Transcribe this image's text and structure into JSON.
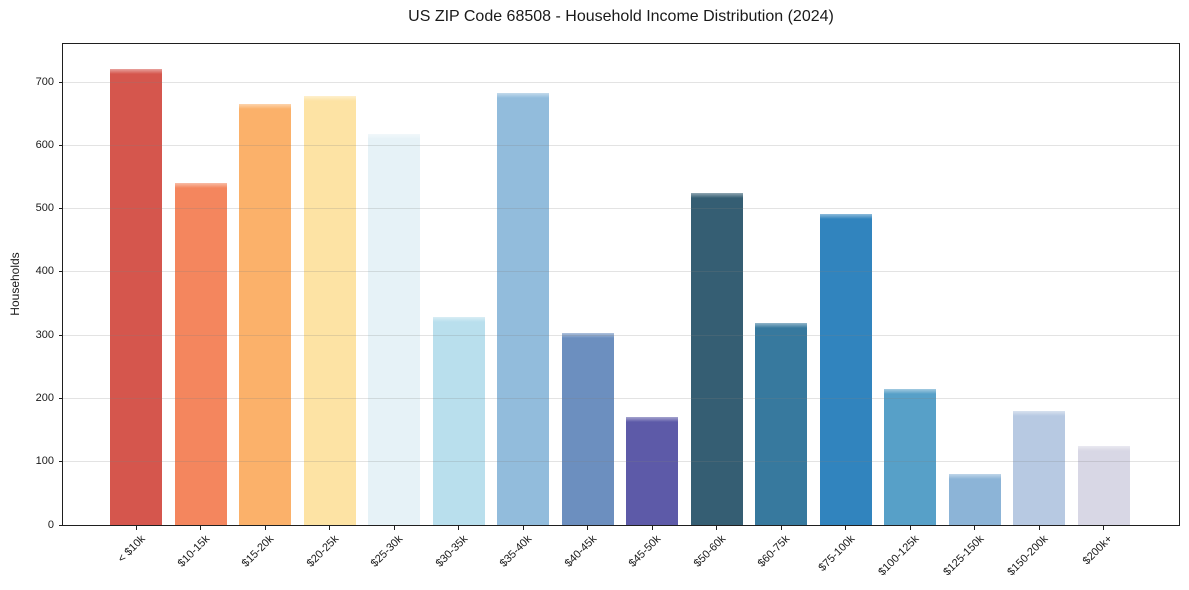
{
  "figure": {
    "background": "#ffffff"
  },
  "chart_data": {
    "type": "bar",
    "title": "US ZIP Code 68508 - Household Income Distribution (2024)",
    "xlabel": "",
    "ylabel": "Households",
    "categories": [
      "< $10k",
      "$10-15k",
      "$15-20k",
      "$20-25k",
      "$25-30k",
      "$30-35k",
      "$35-40k",
      "$40-45k",
      "$45-50k",
      "$50-60k",
      "$60-75k",
      "$75-100k",
      "$100-125k",
      "$125-150k",
      "$150-200k",
      "$200k+"
    ],
    "values": [
      720,
      540,
      665,
      678,
      618,
      328,
      683,
      303,
      171,
      525,
      320,
      492,
      215,
      81,
      180,
      125
    ],
    "bar_colors": [
      "#d5564d",
      "#f4865e",
      "#fbb16a",
      "#fde3a4",
      "#e6f2f7",
      "#b9dfed",
      "#92bcdc",
      "#6c8fbf",
      "#5d5aa8",
      "#355e73",
      "#37799e",
      "#3184be",
      "#57a0c8",
      "#8cb4d7",
      "#b7c9e2",
      "#d8d7e5"
    ],
    "ylim": [
      0,
      760
    ],
    "yticks": [
      0,
      100,
      200,
      300,
      400,
      500,
      600,
      700
    ],
    "grid": "horizontal",
    "gridline_color": "#e3e3e3",
    "axis_color": "#1f1f1f",
    "legend": "none"
  }
}
